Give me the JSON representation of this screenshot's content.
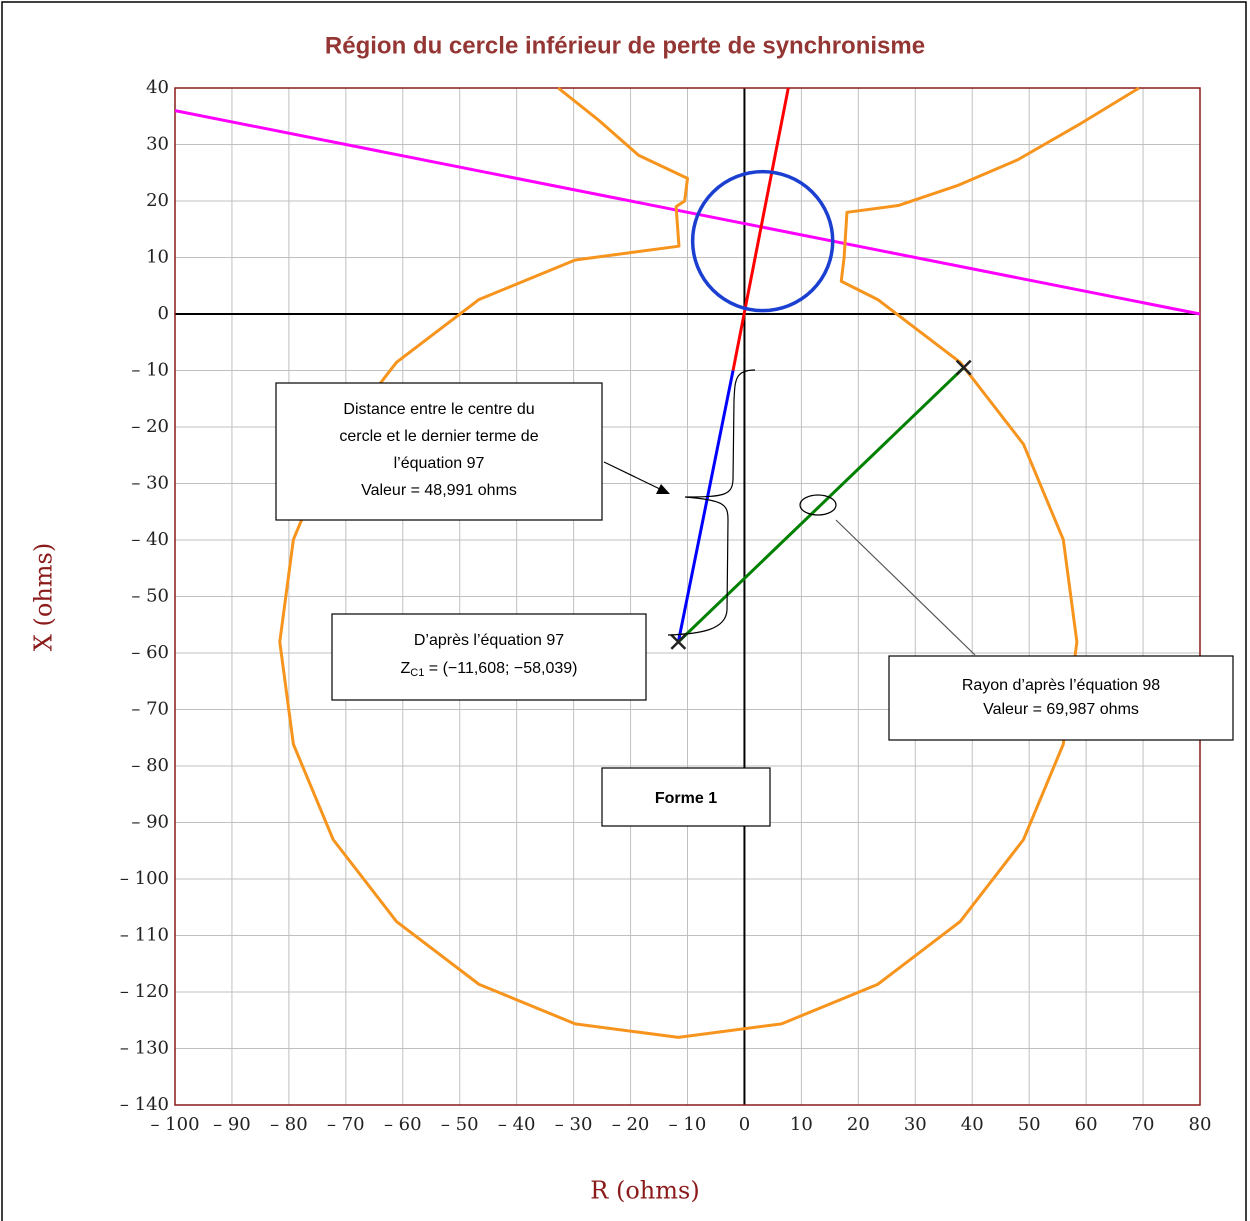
{
  "chart_data": {
    "type": "line",
    "title": "Région du cercle inférieur de perte de synchronisme",
    "x_label": "R (ohms)",
    "y_label": "X (ohms)",
    "xlim": [
      -100,
      80
    ],
    "ylim": [
      -140,
      40
    ],
    "grid": true,
    "xticks": [
      {
        "value": -100,
        "label": "– 100"
      },
      {
        "value": -90,
        "label": "– 90"
      },
      {
        "value": -80,
        "label": "– 80"
      },
      {
        "value": -70,
        "label": "– 70"
      },
      {
        "value": -60,
        "label": "– 60"
      },
      {
        "value": -50,
        "label": "– 50"
      },
      {
        "value": -40,
        "label": "– 40"
      },
      {
        "value": -30,
        "label": "– 30"
      },
      {
        "value": -20,
        "label": "– 20"
      },
      {
        "value": -10,
        "label": "– 10"
      },
      0,
      10,
      20,
      30,
      40,
      50,
      60,
      70,
      80
    ],
    "yticks": [
      40,
      30,
      20,
      10,
      0,
      {
        "value": -10,
        "label": "– 10"
      },
      {
        "value": -20,
        "label": "– 20"
      },
      {
        "value": -30,
        "label": "– 30"
      },
      {
        "value": -40,
        "label": "– 40"
      },
      {
        "value": -50,
        "label": "– 50"
      },
      {
        "value": -60,
        "label": "– 60"
      },
      {
        "value": -70,
        "label": "– 70"
      },
      {
        "value": -80,
        "label": "– 80"
      },
      {
        "value": -90,
        "label": "– 90"
      },
      {
        "value": -100,
        "label": "– 100"
      },
      {
        "value": -110,
        "label": "– 110"
      },
      {
        "value": -120,
        "label": "– 120"
      },
      {
        "value": -130,
        "label": "– 130"
      },
      {
        "value": -140,
        "label": "– 140"
      }
    ],
    "series": [
      {
        "color": "#ff00ff",
        "x": [
          -100,
          80
        ],
        "y": [
          36,
          0
        ]
      },
      {
        "color": "#f7941d",
        "x": [
          -32.7,
          -25.6,
          -18.6,
          -10,
          -10.5,
          -12,
          -11.5,
          -29.72,
          -46.6,
          -61.1,
          -72.22,
          -79.21,
          -81.6,
          -79.21,
          -72.22,
          -61.1,
          -46.6,
          -29.72,
          -11.61,
          6.51,
          23.39,
          37.88,
          49.0,
          55.99,
          58.38,
          55.99,
          49.0,
          37.88,
          23.39,
          17,
          17.5,
          18,
          27,
          37.6,
          48,
          58.7,
          69.3
        ],
        "y": [
          40,
          34.3,
          28.1,
          24,
          20,
          19,
          12,
          9.56,
          2.57,
          -8.55,
          -23.05,
          -39.93,
          -58.04,
          -76.15,
          -93.03,
          -107.53,
          -118.65,
          -125.64,
          -128.03,
          -125.64,
          -118.65,
          -107.53,
          -93.03,
          -76.15,
          -58.04,
          -39.93,
          -23.05,
          -8.55,
          2.57,
          5.8,
          10,
          18,
          19.2,
          22.8,
          27.3,
          33.5,
          40
        ]
      },
      {
        "color": "#ff0000",
        "x": [
          -2,
          7.7
        ],
        "y": [
          -10,
          40
        ]
      },
      {
        "color": "#0000ff",
        "x": [
          -11.608,
          -2
        ],
        "y": [
          -58.039,
          -10
        ]
      },
      {
        "color": "#008000",
        "x": [
          -11.608,
          38.5
        ],
        "y": [
          -58.039,
          -9.5
        ]
      }
    ],
    "circle": {
      "color": "#1a3fd1",
      "cx": 3.2,
      "cy": 12.9,
      "r": 12.3
    },
    "markers": {
      "x": [
        -11.608,
        38.5
      ],
      "y": [
        -58.039,
        -9.5
      ]
    },
    "annotations": [
      {
        "lines": [
          "Distance entre le centre du",
          "cercle et le dernier terme de",
          "l’équation 97",
          "Valeur = 48,991 ohms"
        ]
      },
      {
        "lines": [
          "D’après l’équation 97"
        ],
        "z": "Z",
        "sub": "C1",
        "rest": " = (−11,608; −58,039)"
      },
      {
        "lines": [
          "Rayon d’après l’équation 98",
          "Valeur = 69,987 ohms"
        ]
      },
      {
        "lines": [
          "Forme 1"
        ]
      }
    ]
  }
}
